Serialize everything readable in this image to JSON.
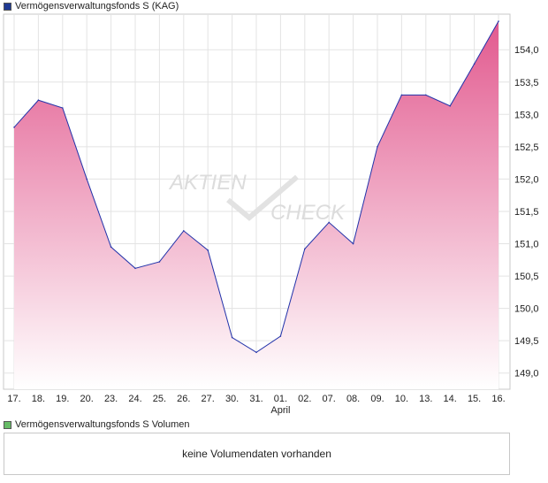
{
  "price_legend": {
    "label": "Vermögensverwaltungsfonds S (KAG)",
    "color": "#1f3a93"
  },
  "volume_legend": {
    "label": "Vermögensverwaltungsfonds S Volumen",
    "color": "#66bb66"
  },
  "volume_panel": {
    "message": "keine Volumendaten vorhanden"
  },
  "watermark": {
    "line1": "AKTIEN",
    "line2": "CHECK"
  },
  "chart_data": {
    "type": "area",
    "x": [
      "17.",
      "18.",
      "19.",
      "20.",
      "23.",
      "24.",
      "25.",
      "26.",
      "27.",
      "30.",
      "31.",
      "01.",
      "02.",
      "07.",
      "08.",
      "09.",
      "10.",
      "13.",
      "14.",
      "15.",
      "16."
    ],
    "month_label": {
      "at": "01.",
      "text": "April"
    },
    "series": [
      {
        "values": [
          152.8,
          153.22,
          153.1,
          152.0,
          150.95,
          150.62,
          150.72,
          151.2,
          150.9,
          149.55,
          149.32,
          149.57,
          150.92,
          151.33,
          151.0,
          152.5,
          153.3,
          153.3,
          153.13,
          153.78,
          154.44
        ]
      }
    ],
    "ylim": [
      148.75,
      154.55
    ],
    "yticks": [
      149.0,
      149.5,
      150.0,
      150.5,
      151.0,
      151.5,
      152.0,
      152.5,
      153.0,
      153.5,
      154.0
    ],
    "ytick_labels": [
      "149,0",
      "149,5",
      "150,0",
      "150,5",
      "151,0",
      "151,5",
      "152,0",
      "152,5",
      "153,0",
      "153,5",
      "154,0"
    ],
    "grid": true,
    "line_color": "#2233aa",
    "fill_top_color": "#e25a8f",
    "fill_bottom_color": "#ffffff"
  }
}
